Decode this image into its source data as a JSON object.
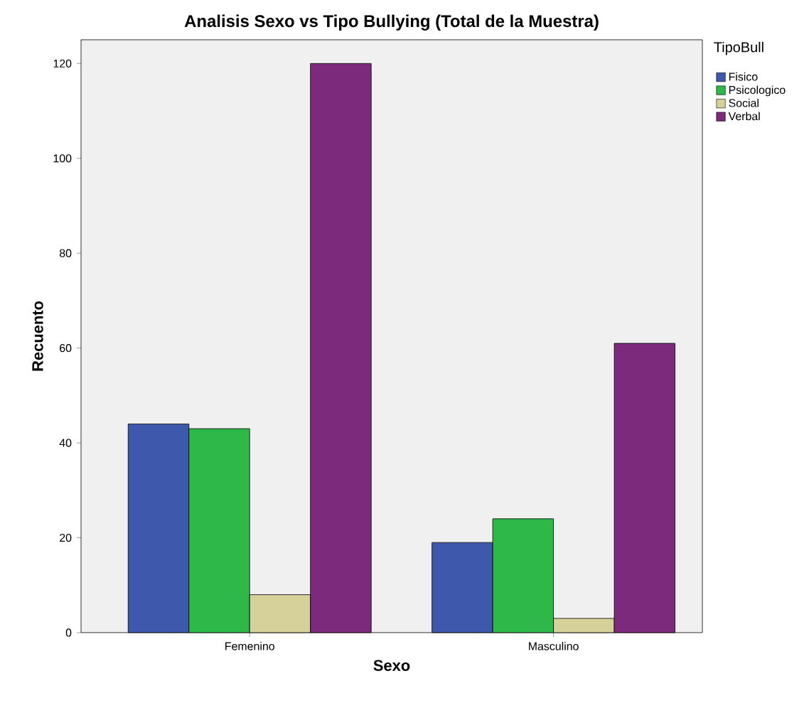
{
  "chart_data": {
    "type": "bar",
    "title": "Analisis  Sexo vs  Tipo Bullying (Total de la Muestra)",
    "xlabel": "Sexo",
    "ylabel": "Recuento",
    "legend_title": "TipoBull",
    "legend": "top right",
    "categories": [
      "Femenino",
      "Masculino"
    ],
    "series": [
      {
        "name": "Fisico",
        "color": "#3e58ac",
        "values": [
          44,
          19
        ]
      },
      {
        "name": "Psicologico",
        "color": "#2fb84a",
        "values": [
          43,
          24
        ]
      },
      {
        "name": "Social",
        "color": "#d6d19a",
        "values": [
          8,
          3
        ]
      },
      {
        "name": "Verbal",
        "color": "#7b2a7c",
        "values": [
          120,
          61
        ]
      }
    ],
    "ylim": [
      0,
      125
    ],
    "yticks": [
      0,
      20,
      40,
      60,
      80,
      100,
      120
    ]
  }
}
